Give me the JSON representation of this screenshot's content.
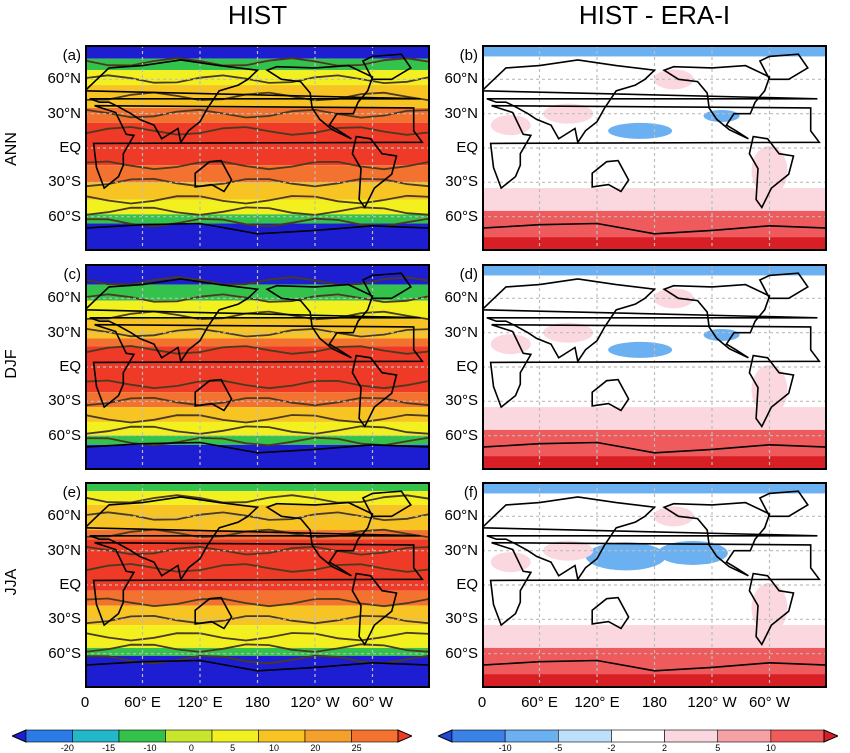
{
  "columns": [
    {
      "title": "HIST"
    },
    {
      "title": "HIST - ERA-I"
    }
  ],
  "rows": [
    {
      "label": "ANN",
      "letters": [
        "(a)",
        "(b)"
      ]
    },
    {
      "label": "DJF",
      "letters": [
        "(c)",
        "(d)"
      ]
    },
    {
      "label": "JJA",
      "letters": [
        "(e)",
        "(f)"
      ]
    }
  ],
  "lat_labels": [
    "60°N",
    "30°N",
    "EQ",
    "30°S",
    "60°S"
  ],
  "lon_labels": [
    "0",
    "60° E",
    "120° E",
    "180",
    "120° W",
    "60° W"
  ],
  "colorbars": [
    {
      "ticks": [
        "-20",
        "-15",
        "-10",
        "0",
        "5",
        "10",
        "20",
        "25"
      ],
      "colors": [
        "#1d1ed2",
        "#2a7be8",
        "#21b8c9",
        "#33c24b",
        "#c8e630",
        "#f3f020",
        "#f7c423",
        "#f5a02a",
        "#f3722f",
        "#ee3a26"
      ]
    },
    {
      "ticks": [
        "-10",
        "-5",
        "-2",
        "2",
        "5",
        "10"
      ],
      "colors": [
        "#2147d6",
        "#3b82e8",
        "#6bb1f2",
        "#bfe0fb",
        "#ffffff",
        "#fbd8df",
        "#f7a1a6",
        "#ef5a5c",
        "#d91f26"
      ]
    }
  ],
  "map_colors": {
    "hist_tropics": "#ee3a26",
    "hist_subtropics": "#f3722f",
    "hist_mid": "#f7c423",
    "hist_high": "#f3f020",
    "hist_cold": "#33c24b",
    "hist_polar": "#1d1ed2",
    "contour": "#4b3a1e",
    "diff_pos": "#fbd8df",
    "diff_pos_strong": "#ef5a5c",
    "diff_neg": "#6bb1f2",
    "diff_bg": "#ffffff"
  }
}
